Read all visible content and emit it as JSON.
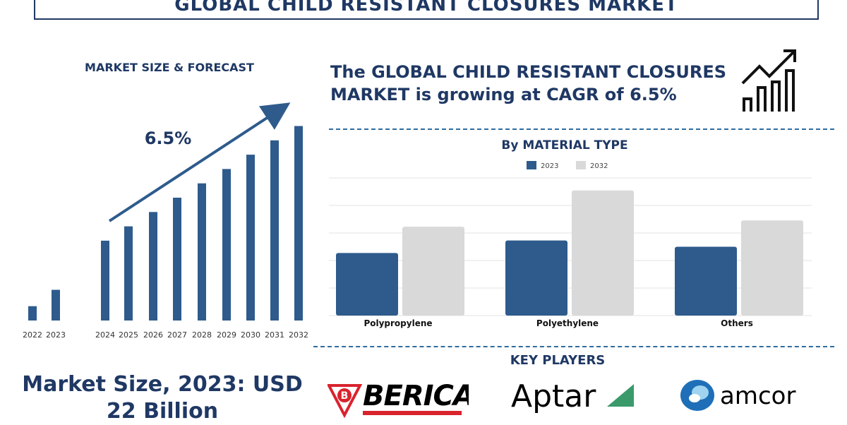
{
  "header": {
    "title": "GLOBAL CHILD RESISTANT CLOSURES MARKET"
  },
  "forecast": {
    "subtitle": "MARKET SIZE & FORECAST",
    "cagr_label": "6.5%",
    "market_size_text": "Market Size, 2023: USD 22 Billion"
  },
  "headline": "The GLOBAL CHILD RESISTANT CLOSURES MARKET is growing at CAGR of 6.5%",
  "material": {
    "title": "By MATERIAL TYPE"
  },
  "key_players": {
    "title": "KEY PLAYERS",
    "logos": [
      "BERICAP",
      "Aptar",
      "amcor"
    ]
  },
  "colors": {
    "navy": "#1f3864",
    "bar_blue": "#2e5b8c",
    "bar_gray": "#d9d9d9",
    "accent_red": "#d9232d",
    "aptar_green": "#3a9a6a",
    "amcor_blue": "#1e6fb8"
  },
  "chart_data": [
    {
      "type": "bar",
      "title": "MARKET SIZE & FORECAST",
      "categories": [
        "2022",
        "2023",
        "2024",
        "2025",
        "2026",
        "2027",
        "2028",
        "2029",
        "2030",
        "2031",
        "2032"
      ],
      "values": [
        7,
        15,
        39,
        46,
        53,
        60,
        67,
        74,
        81,
        88,
        95
      ],
      "annotation": "6.5%",
      "ylim": [
        0,
        100
      ],
      "grid": false
    },
    {
      "type": "bar",
      "title": "By MATERIAL TYPE",
      "categories": [
        "Polypropylene",
        "Polyethylene",
        "Others"
      ],
      "series": [
        {
          "name": "2023",
          "values": [
            50,
            60,
            55
          ]
        },
        {
          "name": "2032",
          "values": [
            71,
            100,
            76
          ]
        }
      ],
      "ylim": [
        0,
        110
      ],
      "grid": true,
      "legend": "top-center"
    }
  ]
}
